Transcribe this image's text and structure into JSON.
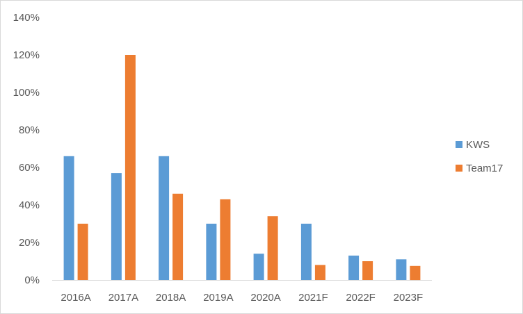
{
  "chart_data": {
    "type": "bar",
    "title": "",
    "xlabel": "",
    "ylabel": "",
    "categories": [
      "2016A",
      "2017A",
      "2018A",
      "2019A",
      "2020A",
      "2021F",
      "2022F",
      "2023F"
    ],
    "series": [
      {
        "name": "KWS",
        "color": "#5b9bd5",
        "values": [
          66,
          57,
          66,
          30,
          14,
          30,
          13,
          11
        ]
      },
      {
        "name": "Team17",
        "color": "#ed7d31",
        "values": [
          30,
          120,
          46,
          43,
          34,
          8,
          10,
          7.5
        ]
      }
    ],
    "ylim": [
      0,
      140
    ],
    "yticks": [
      0,
      20,
      40,
      60,
      80,
      100,
      120,
      140
    ],
    "ytick_labels": [
      "0%",
      "20%",
      "40%",
      "60%",
      "80%",
      "100%",
      "120%",
      "140%"
    ],
    "grid": false,
    "legend_position": "right"
  }
}
